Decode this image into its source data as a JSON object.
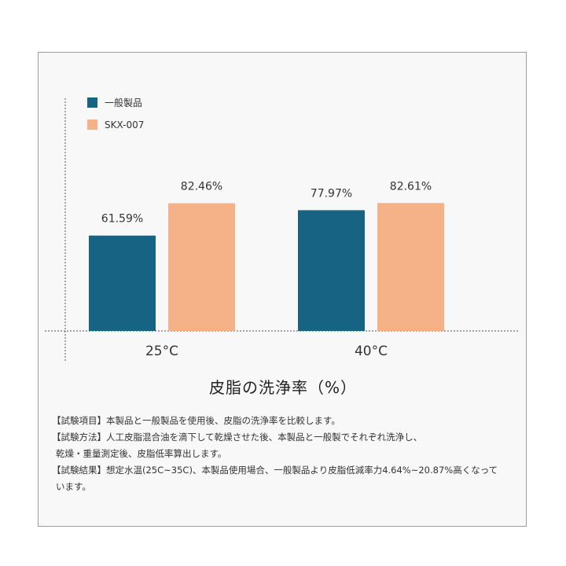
{
  "colors": {
    "series1": "#176384",
    "series2": "#f5b187",
    "axis": "#555555"
  },
  "chart_data": {
    "type": "bar",
    "title": "皮脂の洗浄率（%）",
    "categories": [
      "25°C",
      "40°C"
    ],
    "series": [
      {
        "name": "一般製品",
        "values": [
          61.59,
          77.97
        ],
        "labels": [
          "61.59%",
          "77.97%"
        ]
      },
      {
        "name": "SKX-007",
        "values": [
          82.46,
          82.61
        ],
        "labels": [
          "82.46%",
          "82.61%"
        ]
      }
    ],
    "legend": "top-left",
    "grid": false
  },
  "notes": [
    "【試験項目】本製品と一般製品を使用後、皮脂の洗浄率を比較します。",
    "【試験方法】人工皮脂混合油を滴下して乾燥させた後、本製品と一般製でそれぞれ洗浄し、",
    "乾燥・重量測定後、皮脂低率算出します。",
    "【試験結果】想定水温(25C~35C)、本製品使用場合、一般製品より皮脂低減率力4.64%~20.87%高くなって",
    "います。"
  ]
}
